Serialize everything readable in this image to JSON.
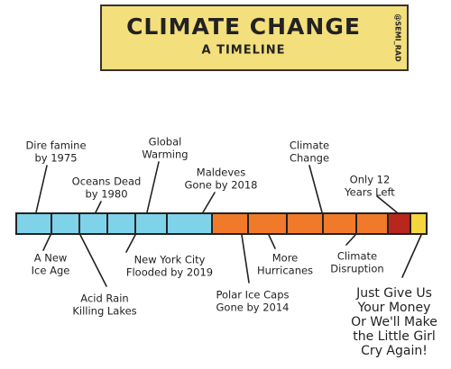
{
  "header": {
    "title": "CLIMATE CHANGE",
    "subtitle": "A TIMELINE",
    "credit": "@SEMI_RAD"
  },
  "labels_above": [
    {
      "lines": [
        "Dire famine",
        "by 1975"
      ]
    },
    {
      "lines": [
        "Global",
        "Warming"
      ]
    },
    {
      "lines": [
        "Oceans Dead",
        "by 1980"
      ]
    },
    {
      "lines": [
        "Maldeves",
        "Gone by 2018"
      ]
    },
    {
      "lines": [
        "Climate",
        "Change"
      ]
    },
    {
      "lines": [
        "Only 12",
        "Years Left"
      ]
    }
  ],
  "labels_below": [
    {
      "lines": [
        "A New",
        "Ice Age"
      ]
    },
    {
      "lines": [
        "New York City",
        "Flooded by 2019"
      ]
    },
    {
      "lines": [
        "More",
        "Hurricanes"
      ]
    },
    {
      "lines": [
        "Climate",
        "Disruption"
      ]
    },
    {
      "lines": [
        "Acid Rain",
        "Killing Lakes"
      ]
    },
    {
      "lines": [
        "Polar Ice Caps",
        "Gone by 2014"
      ]
    },
    {
      "lines": [
        "Just Give Us",
        "Your Money",
        "Or We'll Make",
        "the Little Girl",
        "Cry Again!"
      ]
    }
  ]
}
